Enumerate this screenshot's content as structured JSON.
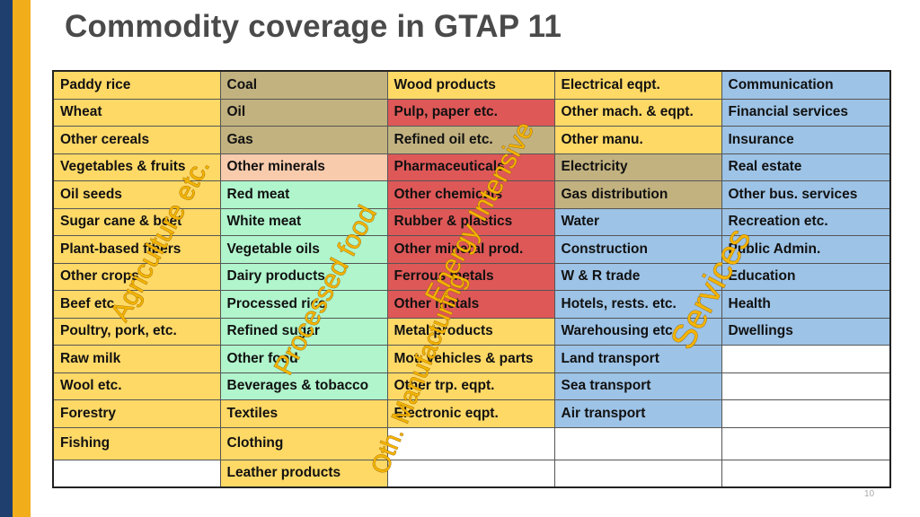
{
  "title": "Commodity coverage in GTAP 11",
  "page_number": "10",
  "colors": {
    "agriculture_food": "#ffd966",
    "energy_tan": "#c2b280",
    "energy_intensive_red": "#de5858",
    "other_minerals_peach": "#f8cbad",
    "processed_food_green": "#b0f5cc",
    "services_blue": "#9dc3e6",
    "manufacturing_orange": "#ffd966",
    "empty": "#ffffff",
    "overlay_text": "#f4b400"
  },
  "table": {
    "rows": [
      [
        {
          "text": "Paddy rice",
          "color": "#ffd966"
        },
        {
          "text": "Coal",
          "color": "#c2b280"
        },
        {
          "text": "Wood products",
          "color": "#ffd966"
        },
        {
          "text": "Electrical eqpt.",
          "color": "#ffd966"
        },
        {
          "text": "Communication",
          "color": "#9dc3e6"
        }
      ],
      [
        {
          "text": "Wheat",
          "color": "#ffd966"
        },
        {
          "text": "Oil",
          "color": "#c2b280"
        },
        {
          "text": "Pulp, paper etc.",
          "color": "#de5858"
        },
        {
          "text": "Other mach. & eqpt.",
          "color": "#ffd966"
        },
        {
          "text": "Financial services",
          "color": "#9dc3e6"
        }
      ],
      [
        {
          "text": "Other cereals",
          "color": "#ffd966"
        },
        {
          "text": "Gas",
          "color": "#c2b280"
        },
        {
          "text": "Refined oil etc.",
          "color": "#c2b280"
        },
        {
          "text": "Other manu.",
          "color": "#ffd966"
        },
        {
          "text": "Insurance",
          "color": "#9dc3e6"
        }
      ],
      [
        {
          "text": "Vegetables & fruits",
          "color": "#ffd966"
        },
        {
          "text": "Other minerals",
          "color": "#f8cbad"
        },
        {
          "text": "Pharmaceuticals",
          "color": "#de5858"
        },
        {
          "text": "Electricity",
          "color": "#c2b280"
        },
        {
          "text": "Real estate",
          "color": "#9dc3e6"
        }
      ],
      [
        {
          "text": "Oil seeds",
          "color": "#ffd966"
        },
        {
          "text": "Red meat",
          "color": "#b0f5cc"
        },
        {
          "text": "Other chemicals",
          "color": "#de5858"
        },
        {
          "text": "Gas distribution",
          "color": "#c2b280"
        },
        {
          "text": "Other bus. services",
          "color": "#9dc3e6"
        }
      ],
      [
        {
          "text": "Sugar cane & beet",
          "color": "#ffd966"
        },
        {
          "text": "White meat",
          "color": "#b0f5cc"
        },
        {
          "text": "Rubber & plastics",
          "color": "#de5858"
        },
        {
          "text": "Water",
          "color": "#9dc3e6"
        },
        {
          "text": "Recreation etc.",
          "color": "#9dc3e6"
        }
      ],
      [
        {
          "text": "Plant-based fibers",
          "color": "#ffd966"
        },
        {
          "text": "Vegetable oils",
          "color": "#b0f5cc"
        },
        {
          "text": "Other mineral prod.",
          "color": "#de5858"
        },
        {
          "text": "Construction",
          "color": "#9dc3e6"
        },
        {
          "text": "Public Admin.",
          "color": "#9dc3e6"
        }
      ],
      [
        {
          "text": "Other crops",
          "color": "#ffd966"
        },
        {
          "text": "Dairy products",
          "color": "#b0f5cc"
        },
        {
          "text": "Ferrous metals",
          "color": "#de5858"
        },
        {
          "text": "W & R trade",
          "color": "#9dc3e6"
        },
        {
          "text": "Education",
          "color": "#9dc3e6"
        }
      ],
      [
        {
          "text": "Beef etc.",
          "color": "#ffd966"
        },
        {
          "text": "Processed rice",
          "color": "#b0f5cc"
        },
        {
          "text": "Other metals",
          "color": "#de5858"
        },
        {
          "text": "Hotels, rests. etc.",
          "color": "#9dc3e6"
        },
        {
          "text": "Health",
          "color": "#9dc3e6"
        }
      ],
      [
        {
          "text": "Poultry, pork, etc.",
          "color": "#ffd966"
        },
        {
          "text": "Refined sugar",
          "color": "#b0f5cc"
        },
        {
          "text": "Metal products",
          "color": "#ffd966"
        },
        {
          "text": "Warehousing etc.",
          "color": "#9dc3e6"
        },
        {
          "text": "Dwellings",
          "color": "#9dc3e6"
        }
      ],
      [
        {
          "text": "Raw milk",
          "color": "#ffd966"
        },
        {
          "text": "Other food",
          "color": "#b0f5cc"
        },
        {
          "text": "Mot. vehicles & parts",
          "color": "#ffd966"
        },
        {
          "text": "Land transport",
          "color": "#9dc3e6"
        },
        {
          "text": "",
          "color": "#ffffff"
        }
      ],
      [
        {
          "text": "Wool etc.",
          "color": "#ffd966"
        },
        {
          "text": "Beverages & tobacco",
          "color": "#b0f5cc"
        },
        {
          "text": "Other trp. eqpt.",
          "color": "#ffd966"
        },
        {
          "text": "Sea transport",
          "color": "#9dc3e6"
        },
        {
          "text": "",
          "color": "#ffffff"
        }
      ],
      [
        {
          "text": "Forestry",
          "color": "#ffd966"
        },
        {
          "text": "Textiles",
          "color": "#ffd966"
        },
        {
          "text": "Electronic eqpt.",
          "color": "#ffd966"
        },
        {
          "text": "Air transport",
          "color": "#9dc3e6"
        },
        {
          "text": "",
          "color": "#ffffff"
        }
      ],
      [
        {
          "text": "Fishing",
          "color": "#ffd966"
        },
        {
          "text": "Clothing",
          "color": "#ffd966"
        },
        {
          "text": "",
          "color": "#ffffff"
        },
        {
          "text": "",
          "color": "#ffffff"
        },
        {
          "text": "",
          "color": "#ffffff"
        }
      ],
      [
        {
          "text": "",
          "color": "#ffffff"
        },
        {
          "text": "Leather products",
          "color": "#ffd966"
        },
        {
          "text": "",
          "color": "#ffffff"
        },
        {
          "text": "",
          "color": "#ffffff"
        },
        {
          "text": "",
          "color": "#ffffff"
        }
      ]
    ]
  },
  "overlays": {
    "agriculture": "Agriculture etc.",
    "processed_food": "Processed food",
    "energy_intensive": "Energy Intensive",
    "oth_manufacturing": "Oth. Manufacturing",
    "services": "Services"
  }
}
